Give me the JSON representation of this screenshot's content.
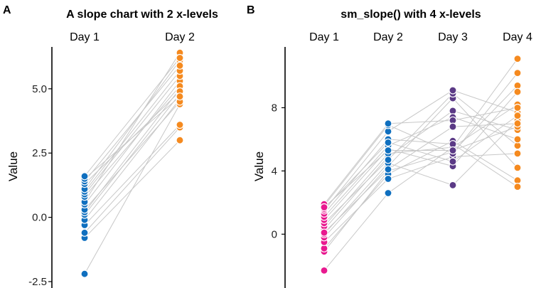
{
  "chart_data": [
    {
      "type": "line",
      "panel_label": "A",
      "title": "A slope chart with 2 x-levels",
      "xlabel": "",
      "ylabel": "Value",
      "categories": [
        "Day 1",
        "Day 2"
      ],
      "colors": [
        "#0f6fbf",
        "#f58a1f"
      ],
      "ylim": [
        -2.5,
        6.6
      ],
      "yticks": [
        -2.5,
        0.0,
        2.5,
        5.0
      ],
      "ytick_labels": [
        "-2.5",
        "0.0",
        "2.5",
        "5.0"
      ],
      "subjects": [
        [
          -2.2,
          4.4
        ],
        [
          -0.8,
          3.0
        ],
        [
          -0.6,
          3.5
        ],
        [
          -0.3,
          3.6
        ],
        [
          -0.1,
          4.6
        ],
        [
          0.1,
          4.8
        ],
        [
          0.2,
          5.0
        ],
        [
          0.3,
          4.5
        ],
        [
          0.5,
          5.3
        ],
        [
          0.6,
          6.4
        ],
        [
          0.8,
          5.1
        ],
        [
          0.9,
          5.5
        ],
        [
          1.0,
          5.7
        ],
        [
          1.1,
          6.1
        ],
        [
          1.3,
          4.9
        ],
        [
          1.4,
          5.9
        ],
        [
          1.5,
          4.7
        ],
        [
          1.6,
          6.2
        ]
      ]
    },
    {
      "type": "line",
      "panel_label": "B",
      "title": "sm_slope() with 4 x-levels",
      "xlabel": "",
      "ylabel": "Value",
      "categories": [
        "Day 1",
        "Day 2",
        "Day 3",
        "Day 4"
      ],
      "colors": [
        "#e8198f",
        "#0f6fbf",
        "#5b3a86",
        "#f58a1f"
      ],
      "ylim": [
        -3.0,
        11.8
      ],
      "yticks": [
        0,
        4,
        8
      ],
      "ytick_labels": [
        "0",
        "4",
        "8"
      ],
      "subjects": [
        [
          -2.3,
          2.6,
          5.5,
          11.1
        ],
        [
          -1.1,
          4.0,
          5.2,
          9.4
        ],
        [
          -0.9,
          3.8,
          5.9,
          3.4
        ],
        [
          -0.5,
          3.5,
          4.9,
          5.1
        ],
        [
          -0.2,
          4.3,
          8.6,
          4.2
        ],
        [
          0.0,
          4.5,
          3.1,
          7.2
        ],
        [
          0.3,
          4.9,
          7.8,
          6.6
        ],
        [
          0.5,
          5.1,
          5.5,
          8.2
        ],
        [
          0.7,
          4.7,
          8.9,
          5.6
        ],
        [
          0.9,
          5.4,
          4.3,
          9.0
        ],
        [
          1.1,
          5.6,
          7.4,
          6.0
        ],
        [
          1.3,
          6.0,
          5.7,
          3.0
        ],
        [
          1.5,
          6.5,
          9.1,
          7.7
        ],
        [
          1.6,
          5.8,
          4.6,
          7.5
        ],
        [
          1.8,
          6.9,
          5.1,
          10.2
        ],
        [
          1.9,
          7.0,
          7.2,
          8.0
        ],
        [
          1.7,
          5.3,
          5.3,
          6.8
        ],
        [
          0.1,
          4.1,
          6.8,
          7.0
        ]
      ]
    }
  ]
}
